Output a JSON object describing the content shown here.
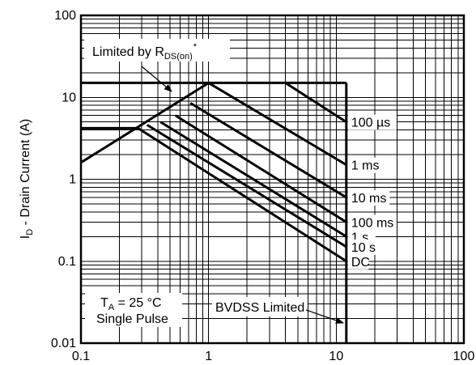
{
  "chart_data": {
    "type": "line",
    "title": "",
    "xlabel": "",
    "ylabel": "I_D - Drain Current (A)",
    "ylabel_parts": {
      "main": "I",
      "sub": "D",
      "rest": " - Drain Current (A)"
    },
    "x_scale": "log",
    "y_scale": "log",
    "xlim": [
      0.1,
      100
    ],
    "ylim": [
      0.01,
      100
    ],
    "grid": true,
    "x_ticks": [
      "0.1",
      "1",
      "10",
      "100"
    ],
    "y_ticks": [
      "0.01",
      "0.1",
      "1",
      "10",
      "100"
    ],
    "series": [
      {
        "name": "100 µs",
        "x": [
          4.0,
          12.0
        ],
        "y": [
          15.0,
          5.0
        ]
      },
      {
        "name": "1 ms",
        "x": [
          1.0,
          12.0
        ],
        "y": [
          15.0,
          1.5
        ]
      },
      {
        "name": "10 ms",
        "x": [
          0.72,
          12.0
        ],
        "y": [
          8.5,
          0.6
        ]
      },
      {
        "name": "100 ms",
        "x": [
          0.55,
          12.0
        ],
        "y": [
          6.0,
          0.3
        ]
      },
      {
        "name": "1 s",
        "x": [
          0.42,
          12.0
        ],
        "y": [
          5.0,
          0.2
        ]
      },
      {
        "name": "10 s",
        "x": [
          0.33,
          12.0
        ],
        "y": [
          4.6,
          0.15
        ]
      },
      {
        "name": "DC",
        "x": [
          0.28,
          12.0
        ],
        "y": [
          4.2,
          0.1
        ]
      }
    ],
    "limits": {
      "rds_on_line": {
        "x": [
          0.1,
          1.0
        ],
        "y": [
          1.6,
          15.0
        ]
      },
      "current_limit_A": 15,
      "dc_current_left_A": 4.2,
      "bvdss_V": 12
    },
    "annotations": {
      "rds_prefix": "Limited by R",
      "rds_sub": "DS(on)",
      "rds_star": "*",
      "bvdss": "BVDSS Limited",
      "ta_main": "T",
      "ta_sub": "A",
      "ta_rest": " = 25 °C",
      "pulse": "Single Pulse"
    }
  }
}
